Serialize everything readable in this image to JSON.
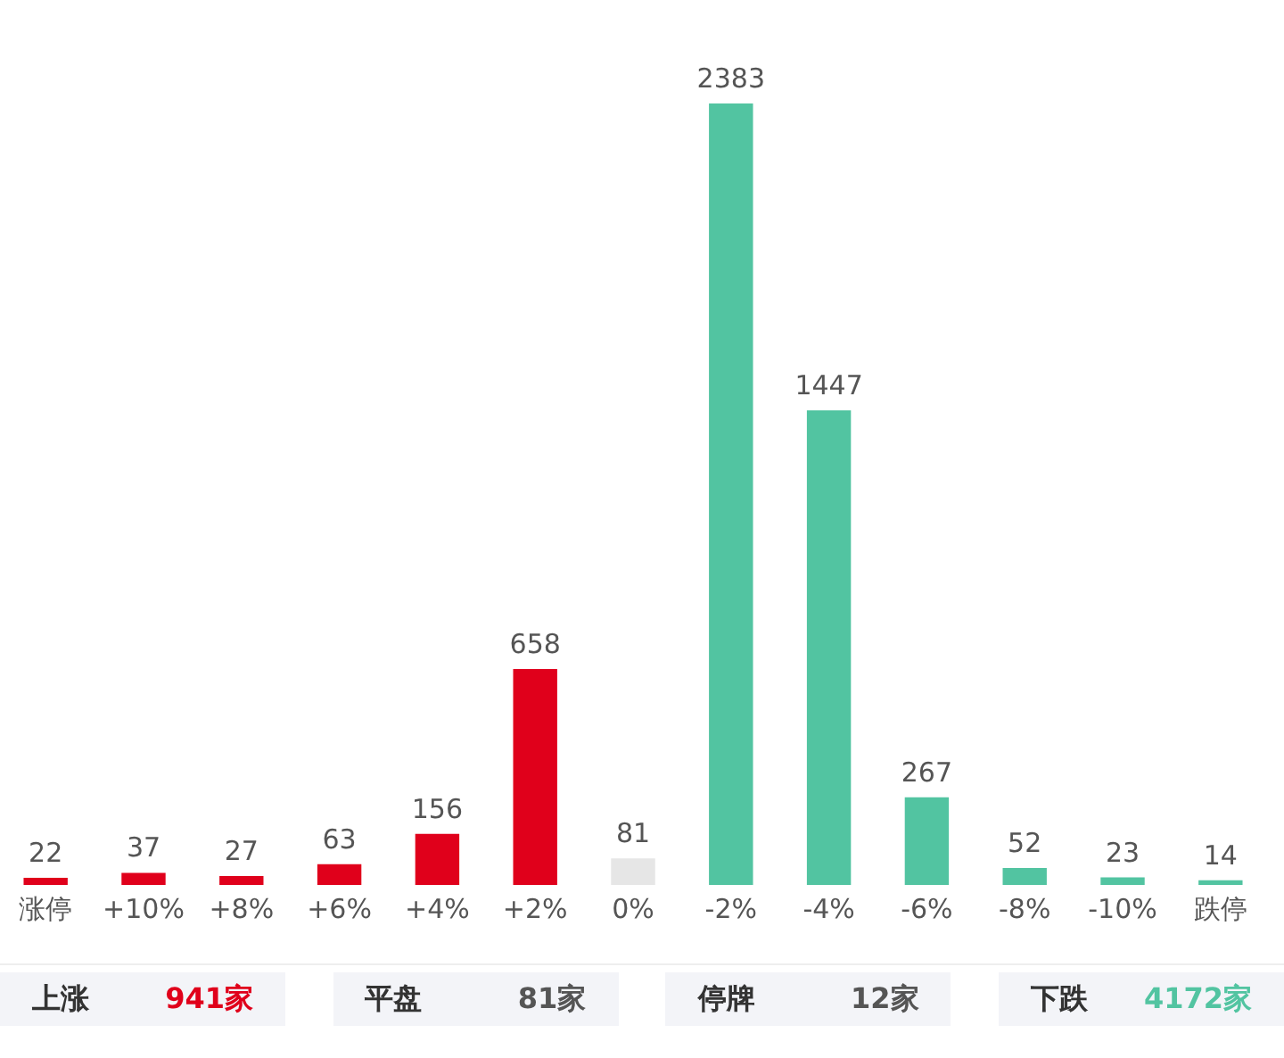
{
  "chart_data": {
    "type": "bar",
    "categories": [
      "涨停",
      "+10%",
      "+8%",
      "+6%",
      "+4%",
      "+2%",
      "0%",
      "-2%",
      "-4%",
      "-6%",
      "-8%",
      "-10%",
      "跌停"
    ],
    "values": [
      22,
      37,
      27,
      63,
      156,
      658,
      81,
      2383,
      1447,
      267,
      52,
      23,
      14
    ],
    "colors": [
      "#e0001b",
      "#e0001b",
      "#e0001b",
      "#e0001b",
      "#e0001b",
      "#e0001b",
      "#e6e6e6",
      "#52c4a1",
      "#52c4a1",
      "#52c4a1",
      "#52c4a1",
      "#52c4a1",
      "#52c4a1"
    ],
    "data_labels": true,
    "grid": false,
    "tick_labels": "x",
    "annotations": [
      "上涨",
      "941家",
      "平盘",
      "81家",
      "停牌",
      "12家",
      "下跌",
      "4172家"
    ]
  }
}
